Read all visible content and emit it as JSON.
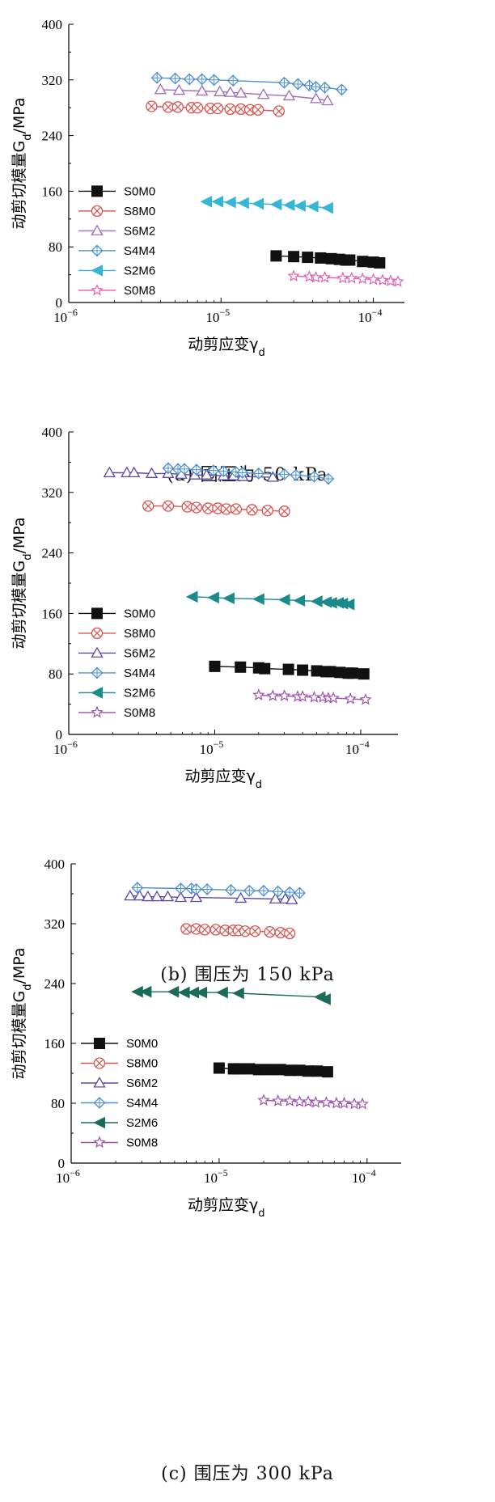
{
  "chart_data": [
    {
      "type": "scatter",
      "x_scale": "log",
      "caption": "(a) 围压为 50 kPa",
      "ylabel": "动剪切模量G_d/MPa",
      "xlabel": "动剪应变γ_d",
      "xlim": [
        1e-06,
        0.00016
      ],
      "ylim": [
        0,
        400
      ],
      "x_ticks": [
        {
          "v": 1e-06,
          "b": "10",
          "e": "−6"
        },
        {
          "v": 1e-05,
          "b": "10",
          "e": "−5"
        },
        {
          "v": 0.0001,
          "b": "10",
          "e": "−4"
        }
      ],
      "y_ticks": [
        0,
        80,
        160,
        240,
        320,
        400
      ],
      "legend_position": "left",
      "series": [
        {
          "name": "S0M0",
          "color": "#111111",
          "marker": "square",
          "x": [
            2.3e-05,
            3e-05,
            3.7e-05,
            4.5e-05,
            5.3e-05,
            6e-05,
            6.6e-05,
            7e-05,
            8.5e-05,
            0.0001,
            0.00011
          ],
          "y": [
            67,
            66,
            65,
            64,
            63,
            62,
            61,
            61,
            59,
            58,
            57
          ]
        },
        {
          "name": "S8M0",
          "color": "#d9534f",
          "marker": "circle-x",
          "x": [
            3.5e-06,
            4.5e-06,
            5.2e-06,
            6.4e-06,
            7e-06,
            8.5e-06,
            9.5e-06,
            1.15e-05,
            1.35e-05,
            1.55e-05,
            1.75e-05,
            2.4e-05
          ],
          "y": [
            282,
            281,
            281,
            280,
            280,
            279,
            279,
            278,
            278,
            277,
            277,
            275
          ]
        },
        {
          "name": "S6M2",
          "color": "#9d6bb8",
          "marker": "triangle",
          "x": [
            4e-06,
            5.3e-06,
            7.5e-06,
            9.8e-06,
            1.15e-05,
            1.35e-05,
            1.9e-05,
            2.8e-05,
            4.2e-05,
            5e-05
          ],
          "y": [
            306,
            305,
            304,
            303,
            302,
            301,
            299,
            297,
            293,
            290
          ]
        },
        {
          "name": "S4M4",
          "color": "#4a8fd0",
          "marker": "diamond",
          "x": [
            3.8e-06,
            5e-06,
            6.2e-06,
            7.5e-06,
            9e-06,
            1.2e-05,
            2.6e-05,
            3.2e-05,
            3.8e-05,
            4.2e-05,
            4.8e-05,
            6.2e-05
          ],
          "y": [
            323,
            322,
            321,
            321,
            320,
            319,
            316,
            314,
            312,
            310,
            309,
            306
          ]
        },
        {
          "name": "S2M6",
          "color": "#35b6d6",
          "marker": "triangle-left",
          "x": [
            8e-06,
            9.5e-06,
            1.15e-05,
            1.4e-05,
            1.75e-05,
            2.3e-05,
            2.8e-05,
            3.3e-05,
            4e-05,
            5e-05
          ],
          "y": [
            145,
            145,
            144,
            143,
            142,
            141,
            140,
            139,
            138,
            136
          ]
        },
        {
          "name": "S0M8",
          "color": "#e05fb5",
          "marker": "star",
          "x": [
            3e-05,
            3.8e-05,
            4.2e-05,
            4.8e-05,
            6.3e-05,
            7.2e-05,
            8.5e-05,
            0.0001,
            0.000115,
            0.00013,
            0.000145
          ],
          "y": [
            38,
            37,
            36,
            36,
            35,
            35,
            34,
            33,
            32,
            31,
            30
          ]
        }
      ]
    },
    {
      "type": "scatter",
      "x_scale": "log",
      "caption": "(b) 围压为 150 kPa",
      "ylabel": "动剪切模量G_d/MPa",
      "xlabel": "动剪应变γ_d",
      "xlim": [
        1e-06,
        0.00018
      ],
      "ylim": [
        0,
        400
      ],
      "x_ticks": [
        {
          "v": 1e-06,
          "b": "10",
          "e": "−6"
        },
        {
          "v": 1e-05,
          "b": "10",
          "e": "−5"
        },
        {
          "v": 0.0001,
          "b": "10",
          "e": "−4"
        }
      ],
      "y_ticks": [
        0,
        80,
        160,
        240,
        320,
        400
      ],
      "legend_position": "left",
      "series": [
        {
          "name": "S0M0",
          "color": "#111111",
          "marker": "square",
          "x": [
            1e-05,
            1.5e-05,
            2e-05,
            2.2e-05,
            3.2e-05,
            4e-05,
            5e-05,
            5.8e-05,
            6.2e-05,
            7.2e-05,
            8.2e-05,
            8.8e-05,
            0.000105
          ],
          "y": [
            90,
            89,
            88,
            87,
            86,
            85,
            84,
            83,
            83,
            82,
            81,
            81,
            80
          ]
        },
        {
          "name": "S8M0",
          "color": "#d9534f",
          "marker": "circle-x",
          "x": [
            3.5e-06,
            4.8e-06,
            6.5e-06,
            7.5e-06,
            9e-06,
            1.05e-05,
            1.2e-05,
            1.4e-05,
            1.8e-05,
            2.3e-05,
            3e-05
          ],
          "y": [
            302,
            302,
            301,
            300,
            299,
            299,
            298,
            298,
            297,
            296,
            295
          ]
        },
        {
          "name": "S6M2",
          "color": "#5b47a8",
          "marker": "triangle",
          "x": [
            1.9e-06,
            2.5e-06,
            2.8e-06,
            3.7e-06,
            4.8e-06,
            5.9e-06,
            7.3e-06,
            8.8e-06,
            1.15e-05,
            1.35e-05,
            1.55e-05,
            2.5e-05
          ],
          "y": [
            346,
            346,
            346,
            345,
            345,
            344,
            343,
            343,
            342,
            342,
            341,
            340
          ]
        },
        {
          "name": "S4M4",
          "color": "#4a8fd0",
          "marker": "diamond",
          "x": [
            4.8e-06,
            5.6e-06,
            6.2e-06,
            7.5e-06,
            9.8e-06,
            1.15e-05,
            1.4e-05,
            1.55e-05,
            2e-05,
            3e-05,
            3.6e-05,
            4.8e-05,
            6e-05
          ],
          "y": [
            352,
            351,
            351,
            350,
            349,
            348,
            347,
            346,
            345,
            344,
            343,
            341,
            338
          ]
        },
        {
          "name": "S2M6",
          "color": "#1a8a8a",
          "marker": "triangle-left",
          "x": [
            7e-06,
            9.8e-06,
            1.25e-05,
            2e-05,
            3e-05,
            3.8e-05,
            5e-05,
            5.8e-05,
            6.3e-05,
            7e-05,
            7.5e-05,
            8.3e-05
          ],
          "y": [
            182,
            181,
            180,
            179,
            178,
            177,
            176,
            175,
            174,
            174,
            173,
            172
          ]
        },
        {
          "name": "S0M8",
          "color": "#9d4fb0",
          "marker": "star",
          "x": [
            2e-05,
            2.5e-05,
            3e-05,
            3.7e-05,
            4e-05,
            4.8e-05,
            5.5e-05,
            6e-05,
            6.5e-05,
            8.5e-05,
            0.000108
          ],
          "y": [
            52,
            51,
            51,
            50,
            50,
            49,
            49,
            48,
            48,
            47,
            46
          ]
        }
      ]
    },
    {
      "type": "scatter",
      "x_scale": "log",
      "caption": "(c) 围压为 300 kPa",
      "ylabel": "动剪切模量G_d/MPa",
      "xlabel": "动剪应变γ_d",
      "xlim": [
        1e-06,
        0.00017
      ],
      "ylim": [
        0,
        400
      ],
      "x_ticks": [
        {
          "v": 1e-06,
          "b": "10",
          "e": "−6"
        },
        {
          "v": 1e-05,
          "b": "10",
          "e": "−5"
        },
        {
          "v": 0.0001,
          "b": "10",
          "e": "−4"
        }
      ],
      "y_ticks": [
        0,
        80,
        160,
        240,
        320,
        400
      ],
      "legend_position": "left",
      "series": [
        {
          "name": "S0M0",
          "color": "#111111",
          "marker": "square",
          "x": [
            1e-05,
            1.25e-05,
            1.35e-05,
            1.6e-05,
            1.85e-05,
            2.2e-05,
            2.6e-05,
            3e-05,
            3.5e-05,
            4e-05,
            4.6e-05,
            5.4e-05
          ],
          "y": [
            127,
            126,
            126,
            126,
            125,
            125,
            125,
            124,
            124,
            123,
            123,
            122
          ]
        },
        {
          "name": "S8M0",
          "color": "#d9534f",
          "marker": "circle-x",
          "x": [
            6e-06,
            7e-06,
            8e-06,
            9.5e-06,
            1.1e-05,
            1.25e-05,
            1.35e-05,
            1.5e-05,
            1.75e-05,
            2.2e-05,
            2.6e-05,
            3e-05
          ],
          "y": [
            313,
            313,
            312,
            312,
            311,
            311,
            311,
            310,
            310,
            309,
            308,
            307
          ]
        },
        {
          "name": "S6M2",
          "color": "#5b47a8",
          "marker": "triangle",
          "x": [
            2.5e-06,
            2.9e-06,
            3.3e-06,
            3.8e-06,
            4.5e-06,
            5.5e-06,
            7e-06,
            1.4e-05,
            2.4e-05,
            2.8e-05,
            3.1e-05
          ],
          "y": [
            357,
            357,
            356,
            356,
            356,
            355,
            355,
            354,
            353,
            353,
            352
          ]
        },
        {
          "name": "S4M4",
          "color": "#4a8fd0",
          "marker": "diamond",
          "x": [
            2.8e-06,
            5.5e-06,
            6.5e-06,
            7e-06,
            8.3e-06,
            1.2e-05,
            1.6e-05,
            2e-05,
            2.5e-05,
            3e-05,
            3.5e-05
          ],
          "y": [
            368,
            367,
            367,
            366,
            366,
            365,
            364,
            364,
            363,
            362,
            361
          ]
        },
        {
          "name": "S2M6",
          "color": "#1a6b5a",
          "marker": "triangle-left",
          "x": [
            2.8e-06,
            3.2e-06,
            4.9e-06,
            5.8e-06,
            6.7e-06,
            7.6e-06,
            1.05e-05,
            1.35e-05,
            4.8e-05,
            5.2e-05
          ],
          "y": [
            229,
            229,
            229,
            228,
            228,
            228,
            228,
            227,
            222,
            219
          ]
        },
        {
          "name": "S0M8",
          "color": "#9d4fb0",
          "marker": "star",
          "x": [
            2e-05,
            2.5e-05,
            3e-05,
            3.5e-05,
            4e-05,
            4.5e-05,
            5.3e-05,
            6.2e-05,
            7e-05,
            8.2e-05,
            9.3e-05
          ],
          "y": [
            84,
            83,
            83,
            82,
            82,
            81,
            81,
            80,
            80,
            79,
            79
          ]
        }
      ]
    }
  ]
}
